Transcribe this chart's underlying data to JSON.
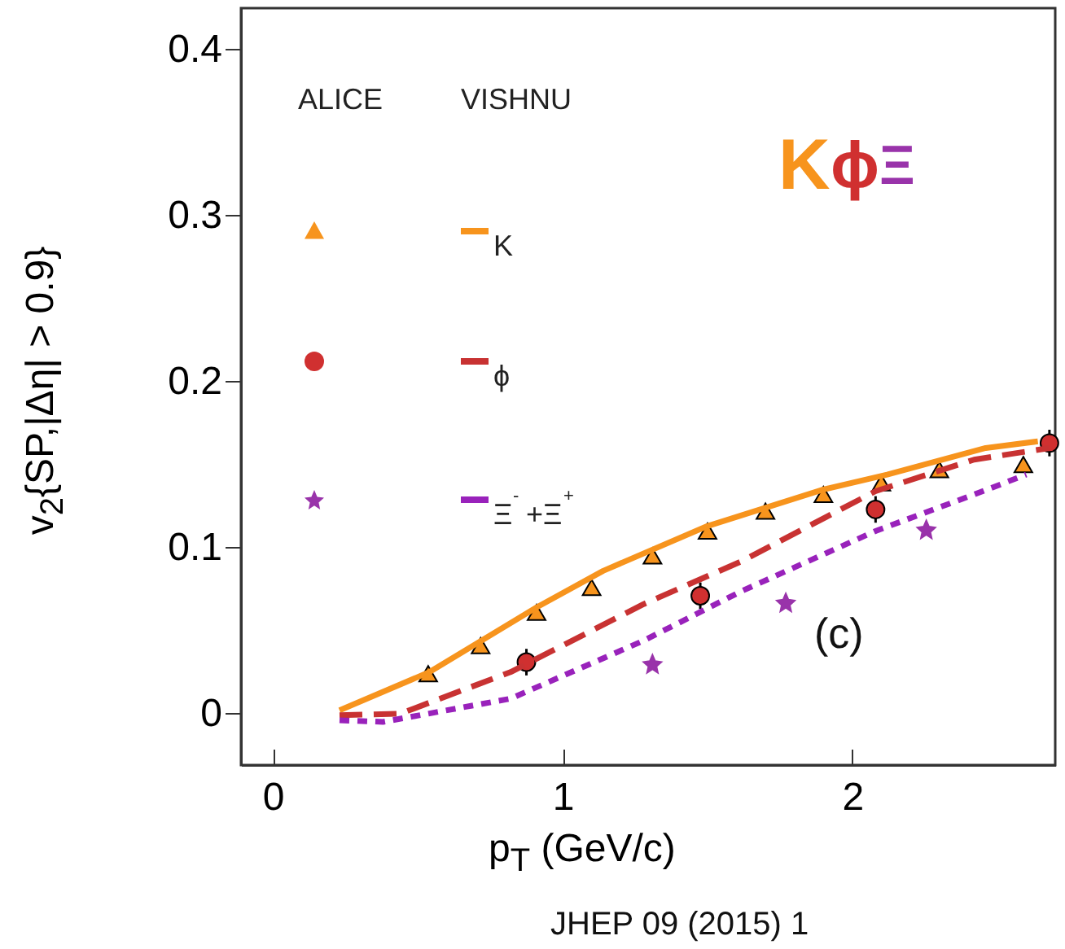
{
  "chart_data": {
    "type": "scatter",
    "xlabel": "p$_{T}$ (GeV/c)",
    "ylabel": "v$_{2}${SP,|Δη| > 0.9}",
    "xlim": [
      -0.11,
      2.7
    ],
    "ylim": [
      -0.031,
      0.425
    ],
    "xticks": [
      0,
      1,
      2
    ],
    "yticks": [
      0,
      0.1,
      0.2,
      0.3,
      0.4
    ],
    "legend": "top left",
    "annotations": [
      "ALICE",
      "VISHNU",
      "K",
      "ϕ",
      "Ξ",
      "(c)",
      "JHEP 09 (2015) 1"
    ],
    "series": [
      {
        "color": "#f7941d",
        "marker": "triangle",
        "x": [
          0.536,
          0.717,
          0.91,
          1.1,
          1.31,
          1.5,
          1.7,
          1.9,
          2.1,
          2.3,
          2.59
        ],
        "values": [
          0.024,
          0.041,
          0.061,
          0.076,
          0.095,
          0.11,
          0.122,
          0.132,
          0.139,
          0.147,
          0.15
        ]
      },
      {
        "color": "#d03030",
        "marker": "circle",
        "x": [
          0.875,
          1.475,
          2.08,
          2.68
        ],
        "values": [
          0.031,
          0.071,
          0.123,
          0.163
        ],
        "errors": [
          0.008,
          0.008,
          0.008,
          0.008
        ]
      },
      {
        "color": "#9933aa",
        "marker": "star",
        "x": [
          1.31,
          1.77,
          2.255
        ],
        "values": [
          0.03,
          0.067,
          0.111
        ]
      },
      {
        "type": "line",
        "name": "K",
        "color": "#f7941d",
        "line_style": "solid",
        "x": [
          0.23,
          0.54,
          0.91,
          1.14,
          1.5,
          1.9,
          2.12,
          2.46,
          2.64
        ],
        "values": [
          0.002,
          0.025,
          0.064,
          0.086,
          0.113,
          0.135,
          0.144,
          0.16,
          0.164
        ]
      },
      {
        "type": "line",
        "name": "ϕ",
        "color": "#c83232",
        "line_style": "dashed",
        "x": [
          0.23,
          0.44,
          0.82,
          1.28,
          1.62,
          2.08,
          2.42,
          2.68
        ],
        "values": [
          -0.001,
          0,
          0.025,
          0.066,
          0.092,
          0.134,
          0.153,
          0.16
        ]
      },
      {
        "type": "line",
        "name": "Ξ$^{-}$+Ξ$^{+}$",
        "color": "#9922bb",
        "line_style": "dotted",
        "x": [
          0.23,
          0.38,
          0.82,
          1.28,
          1.62,
          2.08,
          2.42,
          2.6
        ],
        "values": [
          -0.004,
          -0.005,
          0.009,
          0.044,
          0.074,
          0.11,
          0.132,
          0.144
        ]
      }
    ]
  }
}
